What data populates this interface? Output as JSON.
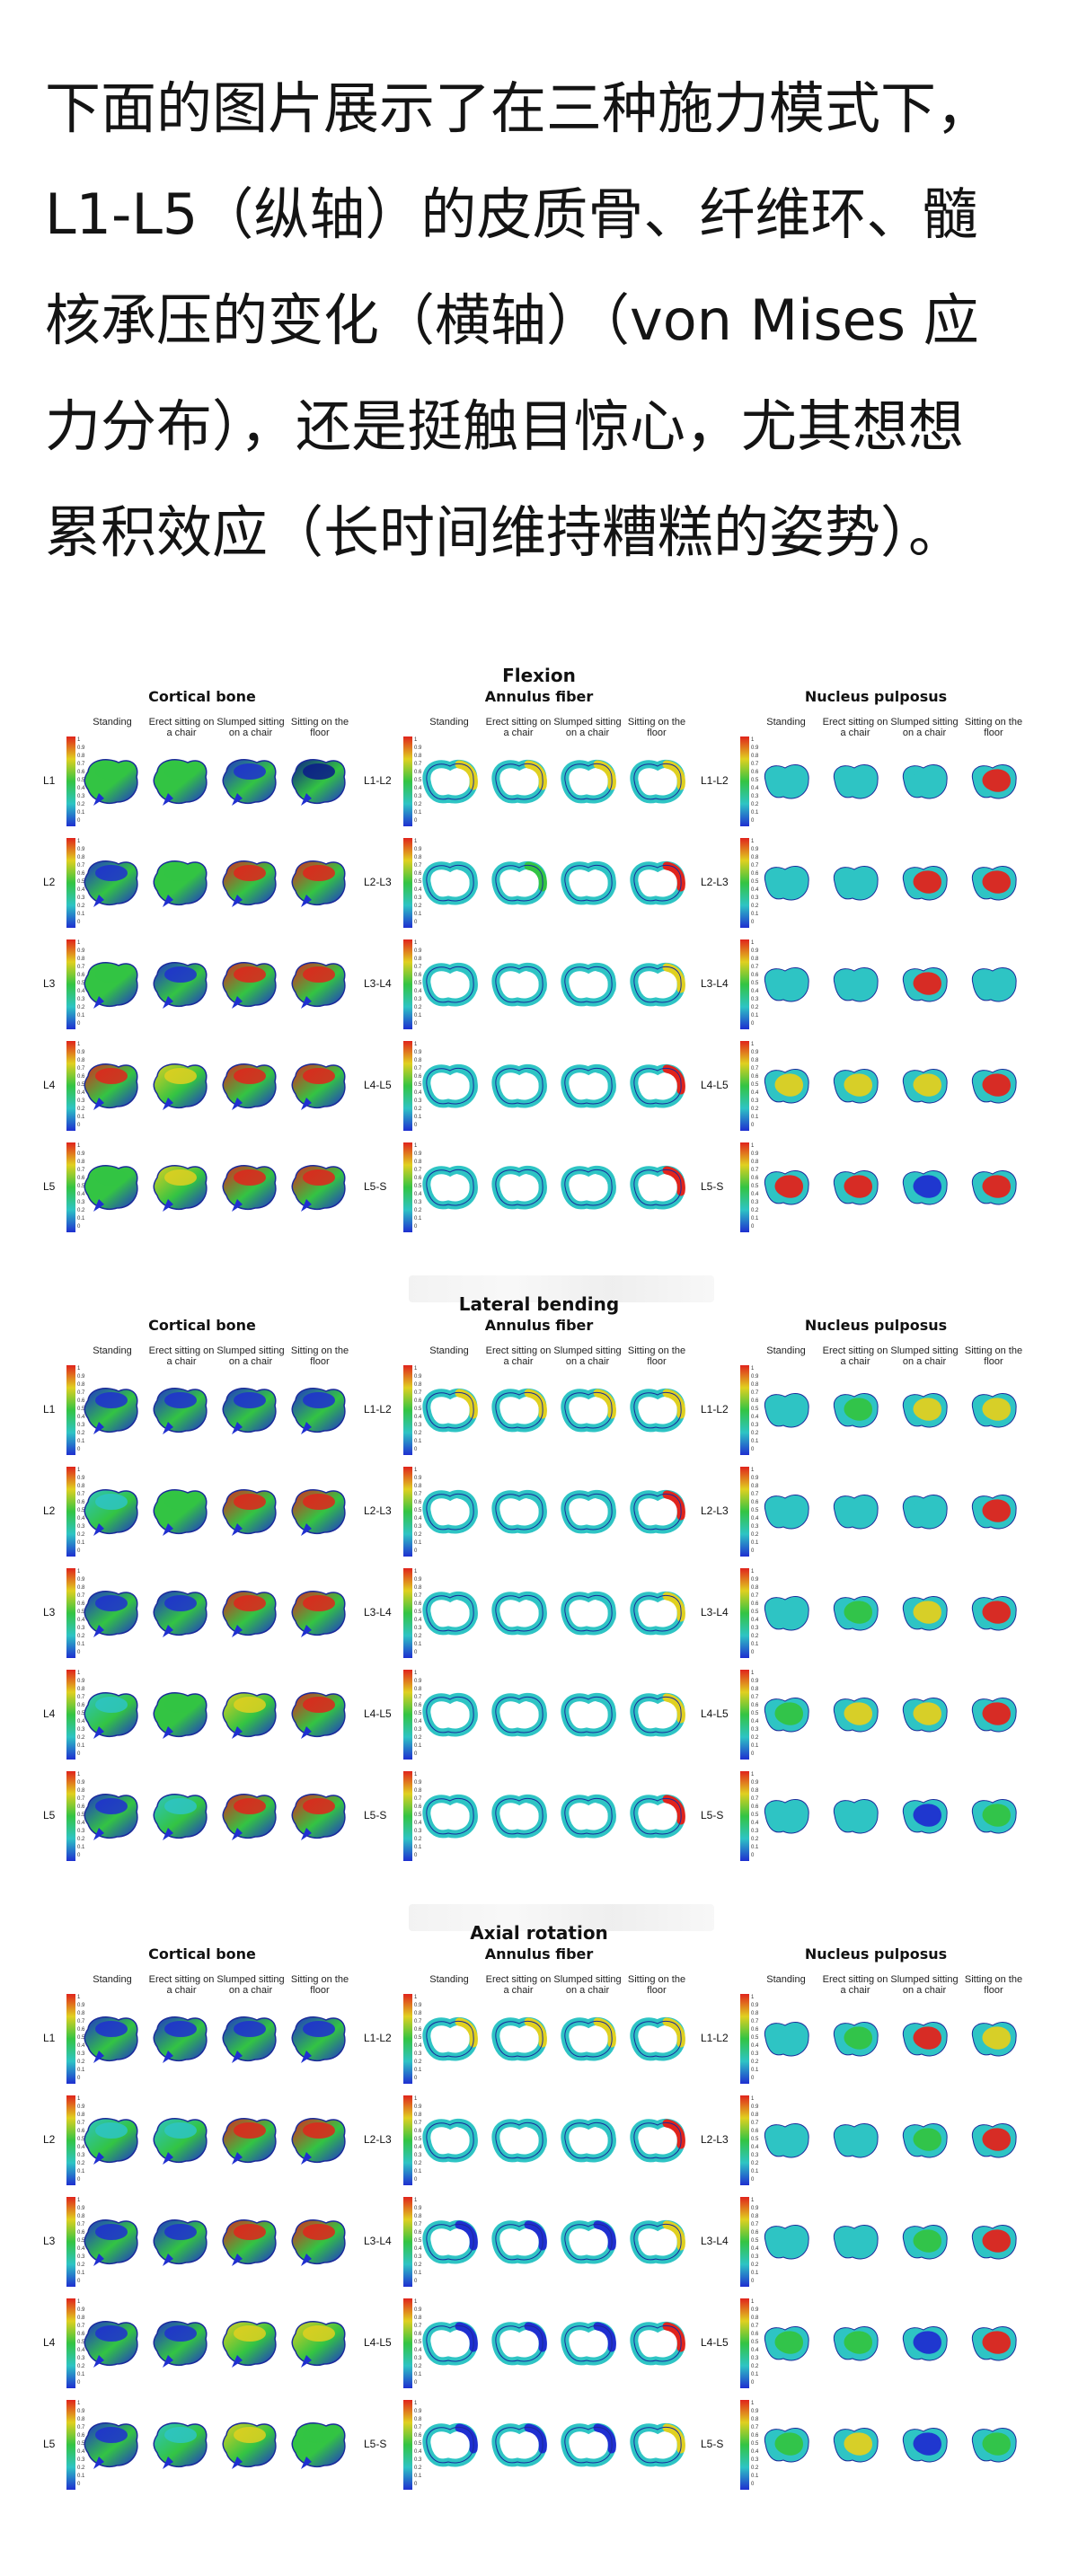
{
  "post": {
    "lines": [
      "下面的图片展示了在三种施力模式下，",
      "L1-L5（纵轴）的皮质骨、纤维环、髓",
      "核承压的变化（横轴）（von Mises 应",
      "力分布），还是挺触目惊心，尤其想想",
      "累积效应（长时间维持糟糕的姿势）。"
    ]
  },
  "figure": {
    "columns": [
      "Standing",
      "Erect sitting on a chair",
      "Slumped sitting on a chair",
      "Sitting on the floor"
    ],
    "panels": [
      {
        "title": "Cortical bone",
        "kind": "bone",
        "rows": [
          "L1",
          "L2",
          "L3",
          "L4",
          "L5"
        ]
      },
      {
        "title": "Annulus fiber",
        "kind": "ring",
        "rows": [
          "L1-L2",
          "L2-L3",
          "L3-L4",
          "L4-L5",
          "L5-S"
        ]
      },
      {
        "title": "Nucleus pulposus",
        "kind": "bean",
        "rows": [
          "L1-L2",
          "L2-L3",
          "L3-L4",
          "L4-L5",
          "L5-S"
        ]
      }
    ],
    "sections": [
      {
        "title": "Flexion",
        "colors": [
          [
            "ggbd",
            "bgrr",
            "gbrr",
            "ryrr",
            "gyrr"
          ],
          [
            "yyyy",
            "cgcr",
            "cccy",
            "cccr",
            "cccr"
          ],
          [
            "cccr",
            "ccrr",
            "ccrc",
            "yyyr",
            "rrbr"
          ]
        ]
      },
      {
        "title": "Lateral bending",
        "colors": [
          [
            "bbbb",
            "cgrr",
            "bbrr",
            "cgyr",
            "bcrr"
          ],
          [
            "yyyy",
            "cccr",
            "cccy",
            "cccy",
            "cccr"
          ],
          [
            "cgyy",
            "cccr",
            "cgyr",
            "gyyr",
            "ccbg"
          ]
        ]
      },
      {
        "title": "Axial rotation",
        "colors": [
          [
            "bbbb",
            "ccrr",
            "bbrr",
            "bbyy",
            "bcyg"
          ],
          [
            "yyyy",
            "cccr",
            "bbby",
            "bbbr",
            "bbby"
          ],
          [
            "cgry",
            "ccgr",
            "ccgr",
            "ggbr",
            "gybg"
          ]
        ]
      }
    ],
    "colorbar_ticks": [
      "1",
      "0.9",
      "0.8",
      "0.7",
      "0.6",
      "0.5",
      "0.4",
      "0.3",
      "0.2",
      "0.1",
      "0"
    ]
  },
  "palette": {
    "b": "#1f2fd0",
    "c": "#2ec4c4",
    "g": "#33c443",
    "y": "#e0d020",
    "r": "#e0241c",
    "d": "#0a1a8a",
    "edge": "#1a2a9a"
  }
}
